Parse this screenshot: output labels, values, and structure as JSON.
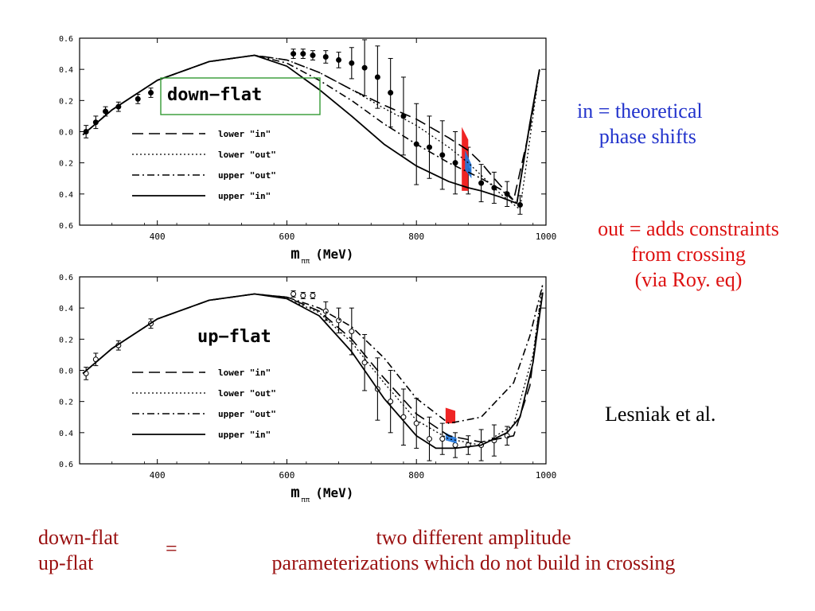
{
  "notes": {
    "in_line1": "in = theoretical",
    "in_line2": "phase shifts",
    "out_line1": "out = adds constraints",
    "out_line2": "from crossing",
    "out_line3": "(via Roy. eq)",
    "author": "Lesniak et al.",
    "footer_left1": "down-flat",
    "footer_left2": "up-flat",
    "footer_eq": "=",
    "footer_right1": "two different amplitude",
    "footer_right2": "parameterizations which do not build in crossing"
  },
  "colors": {
    "in_text": "#2233cc",
    "out_text": "#dd1111",
    "footer_text": "#9a1010",
    "red_band": "#ee1111",
    "blue_band": "#2277dd",
    "title_box": "#339933"
  },
  "chart_data": [
    {
      "type": "line",
      "title": "down−flat",
      "xlabel": "m",
      "xlabel_sub": "ππ",
      "xlabel_unit": "(MeV)",
      "xlim": [
        280,
        1000
      ],
      "ylim": [
        -0.6,
        0.6
      ],
      "x_ticks": [
        400,
        600,
        800,
        1000
      ],
      "x_tick_labels": [
        "400",
        "600",
        "800",
        "1000"
      ],
      "y_ticks": [
        0.6,
        0.4,
        0.2,
        0.0,
        -0.2,
        -0.4,
        -0.6
      ],
      "y_tick_labels": [
        "0.6",
        "0.4",
        "0.2",
        "0.0",
        "0.2",
        "0.4",
        "0.6"
      ],
      "legend": [
        {
          "label": "lower \"in\"",
          "style": "longdash"
        },
        {
          "label": "lower \"out\"",
          "style": "dotted"
        },
        {
          "label": "upper \"out\"",
          "style": "dashdot"
        },
        {
          "label": "upper \"in\"",
          "style": "solid"
        }
      ],
      "series": [
        {
          "name": "lower \"in\"",
          "style": "longdash",
          "x": [
            285,
            330,
            400,
            480,
            550,
            600,
            650,
            700,
            750,
            800,
            850,
            880,
            900,
            920,
            950,
            975,
            990
          ],
          "y": [
            -0.02,
            0.14,
            0.33,
            0.45,
            0.49,
            0.46,
            0.38,
            0.27,
            0.17,
            0.08,
            -0.04,
            -0.12,
            -0.2,
            -0.3,
            -0.44,
            0.02,
            0.4
          ]
        },
        {
          "name": "lower \"out\"",
          "style": "dotted",
          "x": [
            285,
            330,
            400,
            480,
            550,
            600,
            650,
            700,
            750,
            800,
            850,
            880,
            900,
            930,
            960,
            990
          ],
          "y": [
            -0.02,
            0.14,
            0.33,
            0.45,
            0.49,
            0.46,
            0.38,
            0.27,
            0.15,
            0.04,
            -0.1,
            -0.2,
            -0.28,
            -0.4,
            -0.5,
            0.4
          ]
        },
        {
          "name": "upper \"out\"",
          "style": "dashdot",
          "x": [
            285,
            330,
            400,
            480,
            550,
            600,
            650,
            700,
            750,
            800,
            850,
            880,
            900,
            930,
            955,
            975,
            990
          ],
          "y": [
            -0.02,
            0.14,
            0.33,
            0.45,
            0.49,
            0.44,
            0.33,
            0.2,
            0.05,
            -0.08,
            -0.2,
            -0.26,
            -0.3,
            -0.37,
            -0.46,
            0.05,
            0.4
          ]
        },
        {
          "name": "upper \"in\"",
          "style": "solid",
          "x": [
            285,
            330,
            400,
            480,
            550,
            600,
            650,
            700,
            750,
            800,
            850,
            880,
            900,
            930,
            955,
            975,
            990
          ],
          "y": [
            -0.02,
            0.14,
            0.33,
            0.45,
            0.49,
            0.42,
            0.27,
            0.1,
            -0.08,
            -0.22,
            -0.32,
            -0.36,
            -0.38,
            -0.42,
            -0.46,
            0.05,
            0.4
          ]
        }
      ],
      "data_points": {
        "x": [
          290,
          305,
          320,
          340,
          370,
          390,
          610,
          625,
          640,
          660,
          680,
          700,
          720,
          740,
          760,
          780,
          800,
          820,
          840,
          860,
          880,
          900,
          920,
          940,
          960
        ],
        "y": [
          0.0,
          0.06,
          0.13,
          0.16,
          0.21,
          0.25,
          0.5,
          0.5,
          0.49,
          0.48,
          0.46,
          0.44,
          0.41,
          0.35,
          0.25,
          0.1,
          -0.08,
          -0.1,
          -0.15,
          -0.2,
          -0.25,
          -0.33,
          -0.36,
          -0.4,
          -0.47
        ],
        "err": [
          0.04,
          0.04,
          0.03,
          0.03,
          0.03,
          0.03,
          0.03,
          0.03,
          0.03,
          0.04,
          0.05,
          0.1,
          0.18,
          0.2,
          0.22,
          0.25,
          0.26,
          0.2,
          0.22,
          0.2,
          0.15,
          0.12,
          0.1,
          0.08,
          0.06
        ],
        "filled": true
      },
      "bands": [
        {
          "color": "red",
          "x": [
            870,
            880
          ],
          "y": [
            -0.38,
            0.03
          ]
        },
        {
          "color": "blue",
          "x": [
            875,
            885
          ],
          "y": [
            -0.3,
            -0.12
          ]
        }
      ]
    },
    {
      "type": "line",
      "title": "up−flat",
      "xlabel": "m",
      "xlabel_sub": "ππ",
      "xlabel_unit": "(MeV)",
      "xlim": [
        280,
        1000
      ],
      "ylim": [
        -0.6,
        0.6
      ],
      "x_ticks": [
        400,
        600,
        800,
        1000
      ],
      "x_tick_labels": [
        "400",
        "600",
        "800",
        "1000"
      ],
      "y_ticks": [
        0.6,
        0.4,
        0.2,
        0.0,
        -0.2,
        -0.4,
        -0.6
      ],
      "y_tick_labels": [
        "0.6",
        "0.4",
        "0.2",
        "0.0",
        "0.2",
        "0.4",
        "0.6"
      ],
      "legend": [
        {
          "label": "lower \"in\"",
          "style": "longdash"
        },
        {
          "label": "lower \"out\"",
          "style": "dotted"
        },
        {
          "label": "upper \"out\"",
          "style": "dashdot"
        },
        {
          "label": "upper \"in\"",
          "style": "solid"
        }
      ],
      "series": [
        {
          "name": "lower \"in\"",
          "style": "longdash",
          "x": [
            285,
            330,
            400,
            480,
            550,
            600,
            650,
            700,
            750,
            800,
            850,
            900,
            950,
            975,
            990
          ],
          "y": [
            -0.02,
            0.14,
            0.33,
            0.45,
            0.49,
            0.47,
            0.38,
            0.2,
            -0.05,
            -0.28,
            -0.42,
            -0.46,
            -0.42,
            -0.1,
            0.4
          ]
        },
        {
          "name": "lower \"out\"",
          "style": "dotted",
          "x": [
            285,
            330,
            400,
            480,
            550,
            600,
            650,
            700,
            750,
            800,
            850,
            900,
            950,
            980,
            995
          ],
          "y": [
            -0.02,
            0.14,
            0.33,
            0.45,
            0.49,
            0.46,
            0.37,
            0.18,
            -0.08,
            -0.32,
            -0.44,
            -0.48,
            -0.35,
            0.1,
            0.56
          ]
        },
        {
          "name": "upper \"out\"",
          "style": "dashdot",
          "x": [
            285,
            330,
            400,
            480,
            550,
            600,
            650,
            700,
            750,
            800,
            850,
            900,
            950,
            975,
            995
          ],
          "y": [
            -0.02,
            0.14,
            0.33,
            0.45,
            0.49,
            0.47,
            0.4,
            0.28,
            0.08,
            -0.18,
            -0.34,
            -0.3,
            -0.08,
            0.22,
            0.55
          ]
        },
        {
          "name": "upper \"in\"",
          "style": "solid",
          "x": [
            285,
            330,
            400,
            480,
            550,
            600,
            650,
            700,
            750,
            800,
            830,
            860,
            900,
            940,
            960,
            980,
            995
          ],
          "y": [
            -0.02,
            0.14,
            0.33,
            0.45,
            0.49,
            0.46,
            0.35,
            0.12,
            -0.18,
            -0.42,
            -0.5,
            -0.5,
            -0.48,
            -0.4,
            -0.3,
            0.05,
            0.5
          ]
        }
      ],
      "data_points": {
        "x": [
          290,
          305,
          340,
          390,
          610,
          625,
          640,
          660,
          680,
          700,
          720,
          740,
          760,
          780,
          800,
          820,
          840,
          860,
          880,
          900,
          920,
          940
        ],
        "y": [
          -0.02,
          0.07,
          0.16,
          0.3,
          0.49,
          0.48,
          0.48,
          0.38,
          0.32,
          0.25,
          0.05,
          -0.12,
          -0.2,
          -0.3,
          -0.34,
          -0.44,
          -0.44,
          -0.48,
          -0.48,
          -0.48,
          -0.45,
          -0.42
        ],
        "err": [
          0.04,
          0.04,
          0.03,
          0.03,
          0.02,
          0.02,
          0.02,
          0.06,
          0.08,
          0.15,
          0.18,
          0.2,
          0.2,
          0.18,
          0.16,
          0.14,
          0.1,
          0.08,
          0.06,
          0.1,
          0.1,
          0.06
        ],
        "filled": false
      },
      "bands": [
        {
          "color": "red",
          "x": [
            845,
            860
          ],
          "y": [
            -0.34,
            -0.24
          ]
        },
        {
          "color": "blue",
          "x": [
            845,
            862
          ],
          "y": [
            -0.47,
            -0.4
          ]
        }
      ]
    }
  ]
}
